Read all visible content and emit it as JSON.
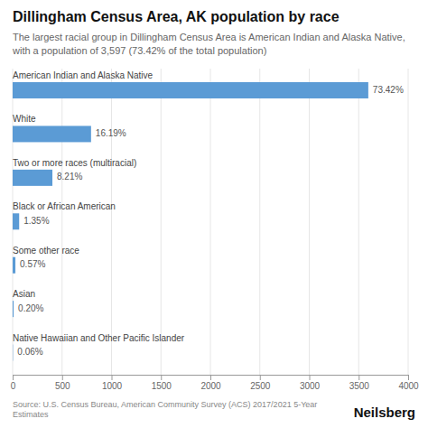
{
  "chart_data": {
    "type": "bar",
    "orientation": "horizontal",
    "title": "Dillingham Census Area, AK population by race",
    "subtitle": "The largest racial group in Dillingham Census Area is American Indian and Alaska Native, with a population of 3,597 (73.42% of the total population)",
    "categories": [
      "American Indian and Alaska Native",
      "White",
      "Two or more races (multiracial)",
      "Black or African American",
      "Some other race",
      "Asian",
      "Native Hawaiian and Other Pacific Islander"
    ],
    "values": [
      3597,
      793,
      402,
      66,
      28,
      10,
      3
    ],
    "percentages": [
      "73.42%",
      "16.19%",
      "8.21%",
      "1.35%",
      "0.57%",
      "0.20%",
      "0.06%"
    ],
    "color": "#5b9bd5",
    "xlim": [
      0,
      4000
    ],
    "xticks": [
      0,
      500,
      1000,
      1500,
      2000,
      2500,
      3000,
      3500,
      4000
    ],
    "grid": true,
    "source": "Source: U.S. Census Bureau, American Community Survey (ACS) 2017/2021 5-Year Estimates",
    "brand": "Neilsberg"
  }
}
